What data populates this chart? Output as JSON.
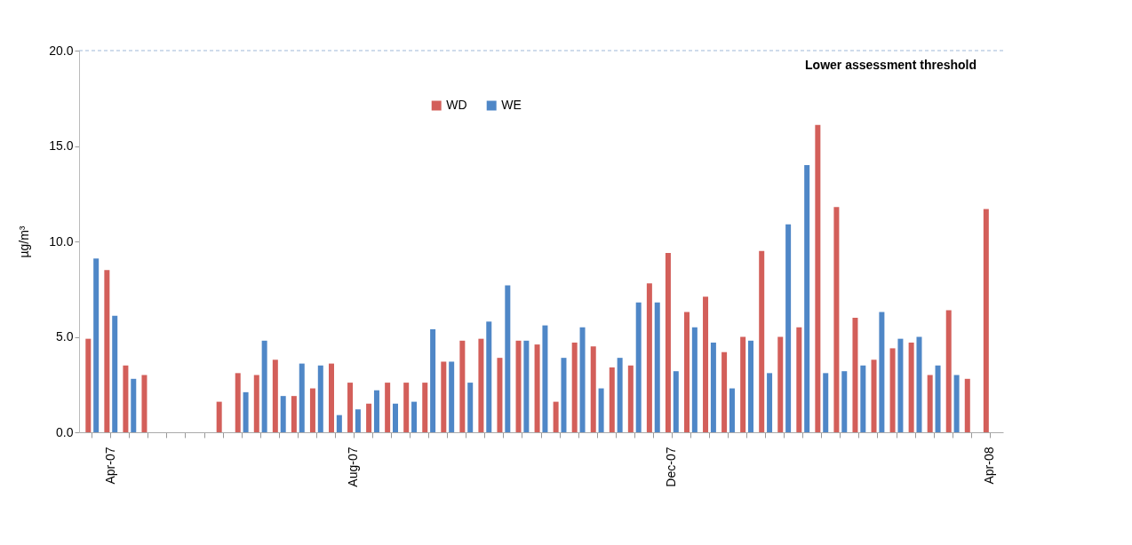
{
  "chart_data": {
    "type": "bar",
    "ylabel": "µg/m³",
    "categories": [
      null,
      "Apr-07",
      null,
      null,
      null,
      null,
      null,
      null,
      null,
      null,
      null,
      null,
      null,
      null,
      "Aug-07",
      null,
      null,
      null,
      null,
      null,
      null,
      null,
      null,
      null,
      null,
      null,
      null,
      null,
      null,
      null,
      null,
      "Dec-07",
      null,
      null,
      null,
      null,
      null,
      null,
      null,
      null,
      null,
      null,
      null,
      null,
      null,
      null,
      null,
      null,
      "Apr-08"
    ],
    "series": [
      {
        "name": "WD",
        "color": "#d35f5a",
        "values": [
          4.9,
          8.5,
          3.5,
          3.0,
          null,
          null,
          null,
          1.6,
          3.1,
          3.0,
          3.8,
          1.9,
          2.3,
          3.6,
          2.6,
          1.5,
          2.6,
          2.6,
          2.6,
          3.7,
          4.8,
          4.9,
          3.9,
          4.8,
          4.6,
          1.6,
          4.7,
          4.5,
          3.4,
          3.5,
          7.8,
          9.4,
          6.3,
          7.1,
          4.2,
          5.0,
          9.5,
          5.0,
          5.5,
          16.1,
          11.8,
          6.0,
          3.8,
          4.4,
          4.7,
          3.0,
          6.4,
          2.8,
          11.7
        ]
      },
      {
        "name": "WE",
        "color": "#4f87c7",
        "values": [
          9.1,
          6.1,
          2.8,
          null,
          null,
          null,
          null,
          null,
          2.1,
          4.8,
          1.9,
          3.6,
          3.5,
          0.9,
          1.2,
          2.2,
          1.5,
          1.6,
          5.4,
          3.7,
          2.6,
          5.8,
          7.7,
          4.8,
          5.6,
          3.9,
          5.5,
          2.3,
          3.9,
          6.8,
          6.8,
          3.2,
          5.5,
          4.7,
          2.3,
          4.8,
          3.1,
          10.9,
          14.0,
          3.1,
          3.2,
          3.5,
          6.3,
          4.9,
          5.0,
          3.5,
          3.0,
          null,
          null
        ]
      }
    ],
    "ylim": [
      0,
      20
    ],
    "yticks": [
      {
        "value": 0,
        "label": "0.0"
      },
      {
        "value": 5,
        "label": "5.0"
      },
      {
        "value": 10,
        "label": "10.0"
      },
      {
        "value": 15,
        "label": "15.0"
      },
      {
        "value": 20,
        "label": "20.0"
      }
    ],
    "ref_lines": [
      {
        "axis": "y",
        "value": 20,
        "label": "Lower assessment threshold",
        "color": "#9fb7d8",
        "line_style": "dashed"
      }
    ],
    "legend": "top",
    "grid": false
  }
}
